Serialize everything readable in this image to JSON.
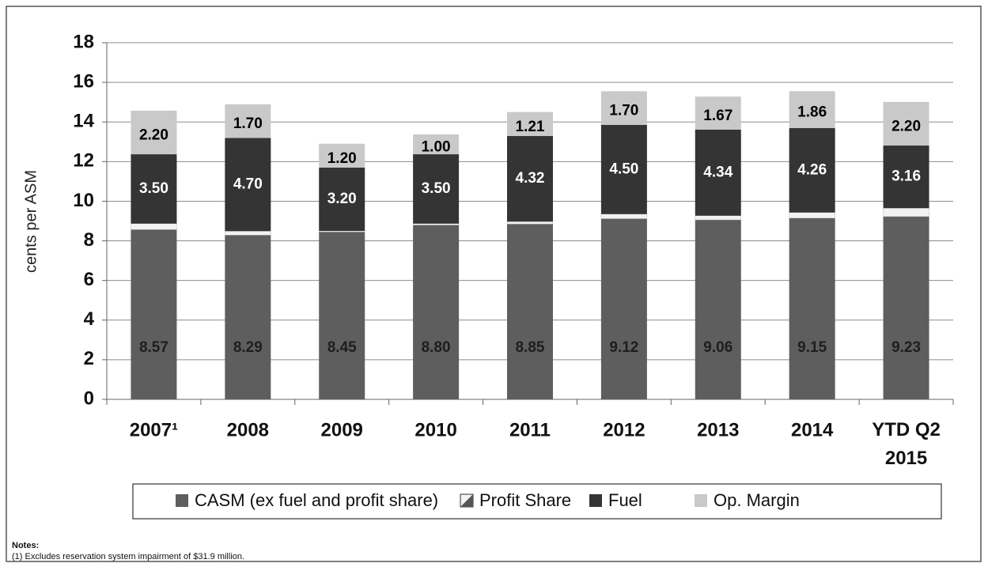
{
  "chart_data": {
    "type": "stacked_bar",
    "y_label": "cents per ASM",
    "categories": [
      "2007¹",
      "2008",
      "2009",
      "2010",
      "2011",
      "2012",
      "2013",
      "2014",
      "YTD Q2 2015"
    ],
    "series": [
      {
        "name": "CASM (ex fuel and profit share)",
        "color": "#5e5e5e",
        "label_color": "#1e1e1e",
        "values": [
          8.57,
          8.29,
          8.45,
          8.8,
          8.85,
          9.12,
          9.06,
          9.15,
          9.23
        ],
        "value_labels": [
          "8.57",
          "8.29",
          "8.45",
          "8.80",
          "8.85",
          "9.12",
          "9.06",
          "9.15",
          "9.23"
        ]
      },
      {
        "name": "Profit Share",
        "color": "#f2f2f2",
        "values": [
          0.3,
          0.2,
          0.05,
          0.07,
          0.12,
          0.23,
          0.21,
          0.28,
          0.42
        ]
      },
      {
        "name": "Fuel",
        "color": "#343434",
        "label_color": "#ffffff",
        "values": [
          3.5,
          4.7,
          3.2,
          3.5,
          4.32,
          4.5,
          4.34,
          4.26,
          3.16
        ],
        "value_labels": [
          "3.50",
          "4.70",
          "3.20",
          "3.50",
          "4.32",
          "4.50",
          "4.34",
          "4.26",
          "3.16"
        ]
      },
      {
        "name": "Op. Margin",
        "color": "#c9c9c9",
        "label_color": "#000000",
        "values": [
          2.2,
          1.7,
          1.2,
          1.0,
          1.21,
          1.7,
          1.67,
          1.86,
          2.2
        ],
        "value_labels": [
          "2.20",
          "1.70",
          "1.20",
          "1.00",
          "1.21",
          "1.70",
          "1.67",
          "1.86",
          "2.20"
        ]
      }
    ],
    "ylim": [
      0,
      18
    ],
    "yticks": [
      0,
      2,
      4,
      6,
      8,
      10,
      12,
      14,
      16,
      18
    ],
    "grid": true,
    "legend": "bottom",
    "notes_title": "Notes:",
    "notes": [
      "(1) Excludes reservation system impairment of $31.9 million."
    ]
  }
}
